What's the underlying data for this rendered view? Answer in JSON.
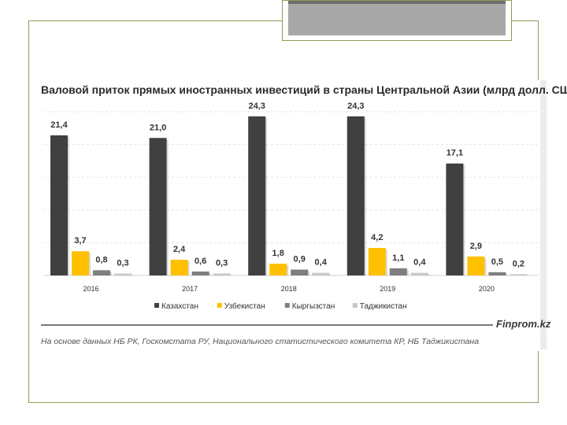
{
  "chart_data": {
    "type": "bar",
    "title": "Валовой приток прямых иностранных инвестиций в страны Центральной Азии (млрд долл. США)",
    "categories": [
      "2016",
      "2017",
      "2018",
      "2019",
      "2020"
    ],
    "series": [
      {
        "name": "Казахстан",
        "color": "#404040",
        "values": [
          21.4,
          21.0,
          24.3,
          24.3,
          17.1
        ],
        "labels": [
          "21,4",
          "21,0",
          "24,3",
          "24,3",
          "17,1"
        ]
      },
      {
        "name": "Узбекистан",
        "color": "#ffc000",
        "values": [
          3.7,
          2.4,
          1.8,
          4.2,
          2.9
        ],
        "labels": [
          "3,7",
          "2,4",
          "1,8",
          "4,2",
          "2,9"
        ]
      },
      {
        "name": "Кыргызстан",
        "color": "#7f7f7f",
        "values": [
          0.8,
          0.6,
          0.9,
          1.1,
          0.5
        ],
        "labels": [
          "0,8",
          "0,6",
          "0,9",
          "1,1",
          "0,5"
        ]
      },
      {
        "name": "Таджикистан",
        "color": "#c8c8c8",
        "values": [
          0.3,
          0.3,
          0.4,
          0.4,
          0.2
        ],
        "labels": [
          "0,3",
          "0,3",
          "0,4",
          "0,4",
          "0,2"
        ]
      }
    ],
    "ylim": [
      0,
      25
    ],
    "grid": true,
    "legend": "bottom"
  },
  "footer": {
    "brand": "Finprom.kz",
    "source": "На основе данных НБ РК, Госкомстата РУ, Национального статистического комитета КР, НБ Таджикистана"
  }
}
